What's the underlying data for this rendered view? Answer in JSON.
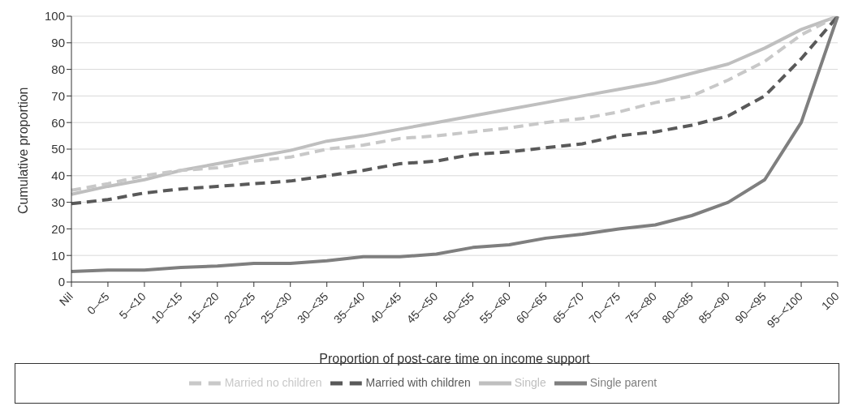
{
  "chart_data": {
    "type": "line",
    "xlabel": "Proportion of post-care time on income support",
    "ylabel": "Cumulative proportion",
    "categories": [
      "Nil",
      "0–<5",
      "5–<10",
      "10–<15",
      "15–<20",
      "20–<25",
      "25–<30",
      "30–<35",
      "35–<40",
      "40–<45",
      "45–<50",
      "50–<55",
      "55–<60",
      "60–<65",
      "65–<70",
      "70–<75",
      "75–<80",
      "80–<85",
      "85–<90",
      "90–<95",
      "95–<100",
      "100"
    ],
    "series": [
      {
        "name": "Single",
        "color": "#bfbfbf",
        "line_style": "solid",
        "values": [
          33,
          36,
          38.5,
          42,
          44.5,
          47,
          49.5,
          53,
          55,
          57.5,
          60,
          62.5,
          65,
          67.5,
          70,
          72.5,
          75,
          78.5,
          82,
          88,
          95,
          100
        ]
      },
      {
        "name": "Married no children",
        "color": "#c8c8c8",
        "line_style": "dashed",
        "values": [
          34.5,
          37,
          40,
          42,
          43,
          45.5,
          47,
          50,
          51.5,
          54,
          55,
          56.5,
          58,
          60,
          61.5,
          64,
          67.5,
          70,
          76,
          83,
          93,
          100
        ]
      },
      {
        "name": "Married with children",
        "color": "#595959",
        "line_style": "dashed",
        "values": [
          29.5,
          31,
          33.5,
          35,
          36,
          37,
          38,
          40,
          42,
          44.5,
          45.5,
          48,
          49,
          50.5,
          52,
          55,
          56.5,
          59,
          62.5,
          70,
          84,
          100
        ]
      },
      {
        "name": "Single parent",
        "color": "#7f7f7f",
        "line_style": "solid",
        "values": [
          4,
          4.5,
          4.5,
          5.5,
          6,
          7,
          7,
          8,
          9.5,
          9.5,
          10.5,
          13,
          14,
          16.5,
          18,
          20,
          21.5,
          25,
          30,
          38.5,
          60,
          100
        ]
      }
    ],
    "ylim": [
      0,
      100
    ],
    "yticks": [
      0,
      10,
      20,
      30,
      40,
      50,
      60,
      70,
      80,
      90,
      100
    ],
    "grid": "y",
    "legend": "bottom",
    "marker": "none"
  }
}
